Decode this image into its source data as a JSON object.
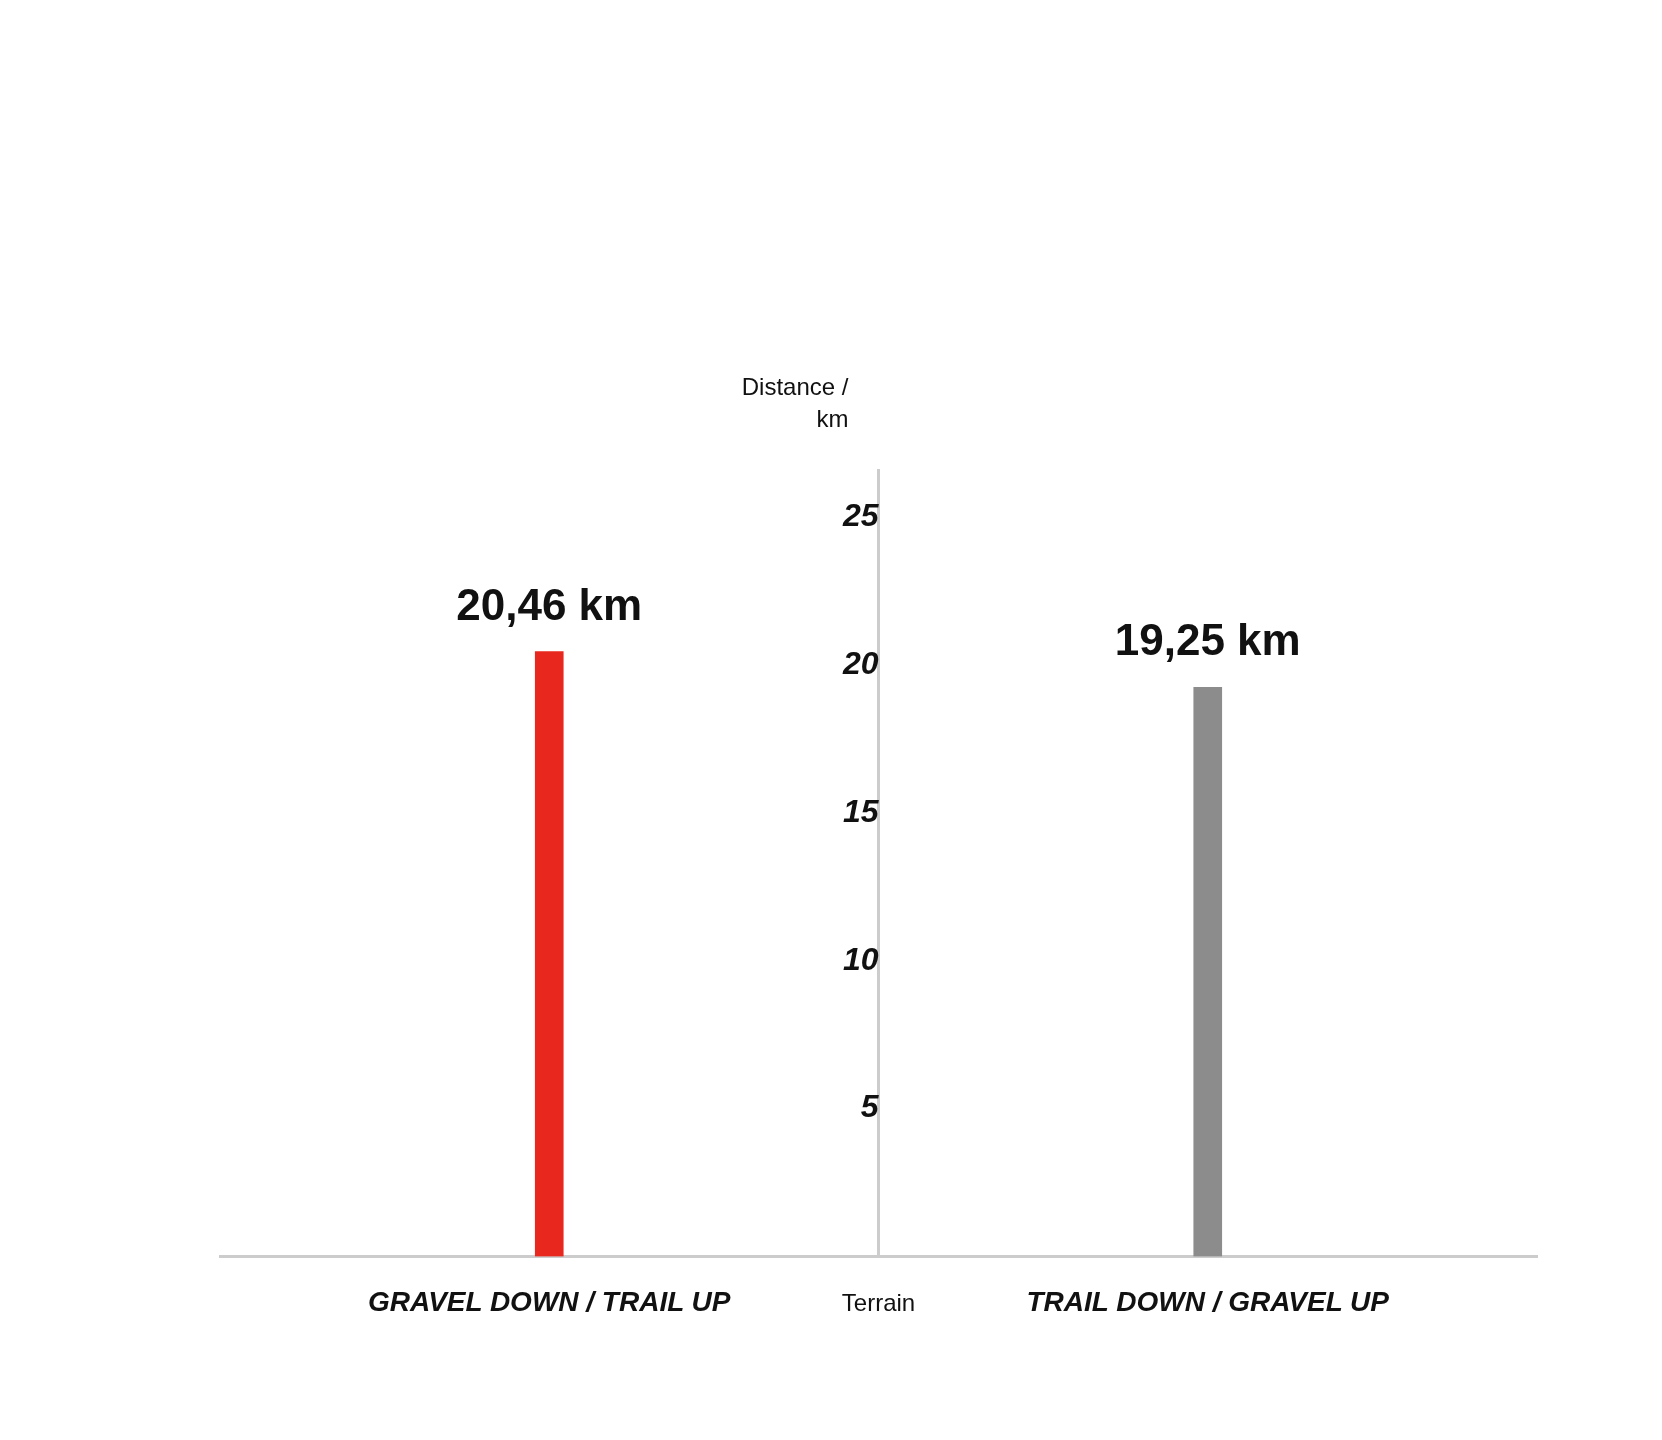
{
  "chart_data": {
    "type": "bar",
    "xlabel": "Terrain",
    "ylabel": "Distance / km",
    "categories": [
      "GRAVEL DOWN / TRAIL UP",
      "TRAIL DOWN / GRAVEL UP"
    ],
    "values": [
      20.46,
      19.25
    ],
    "value_labels": [
      "20,46 km",
      "19,25 km"
    ],
    "colors": [
      "#e8281e",
      "#8c8c8c"
    ],
    "ylim": [
      0,
      26.6
    ],
    "yticks": [
      5,
      10,
      15,
      20,
      25
    ],
    "grid": false,
    "legend": false
  }
}
